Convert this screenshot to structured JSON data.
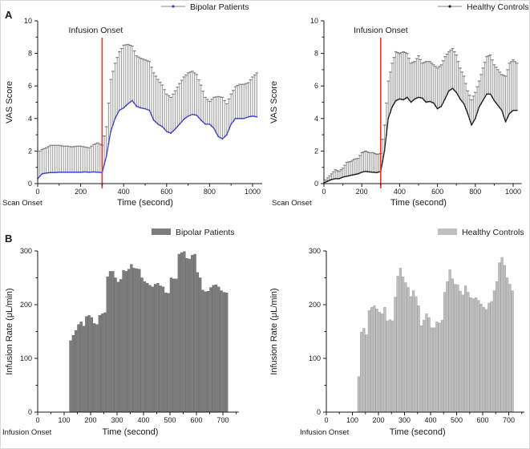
{
  "panel_labels": {
    "a": "A",
    "b": "B"
  },
  "colors": {
    "axis": "#1a1a1a",
    "error_bar": "#9e9e9e",
    "error_cap": "#818181",
    "infusion_line_red": "#e8352a",
    "bipolar_blue": "#3a41c8",
    "control_black": "#1c1c1c",
    "bipolar_bar_gray": "#7d7d7d",
    "control_bar_gray": "#bfbfbf"
  },
  "chart_data": [
    {
      "id": "vas-bipolar",
      "type": "line",
      "panel": "A",
      "legend": "Bipolar Patients",
      "xlabel": "Time (second)",
      "ylabel": "VAS Score",
      "corner_note": "Scan Onset",
      "annotation": {
        "text": "Infusion Onset",
        "x": 300,
        "color": "#e8352a"
      },
      "xlim": [
        0,
        1045
      ],
      "ylim": [
        0,
        10
      ],
      "xticks": [
        0,
        200,
        400,
        600,
        800,
        1000
      ],
      "yticks": [
        0,
        2,
        4,
        6,
        8,
        10
      ],
      "x_minor_step": 100,
      "y_minor_step": 1,
      "x_start": 0,
      "x_step": 20,
      "line_color": "#3a41c8",
      "error_color": "#9e9e9e",
      "mean": [
        0.3,
        0.6,
        0.65,
        0.68,
        0.68,
        0.7,
        0.7,
        0.7,
        0.7,
        0.7,
        0.7,
        0.72,
        0.7,
        0.72,
        0.7,
        0.68,
        1.7,
        3.2,
        4.0,
        4.5,
        4.65,
        4.9,
        5.1,
        4.75,
        4.65,
        4.6,
        4.5,
        3.9,
        3.65,
        3.5,
        3.2,
        3.1,
        3.35,
        3.65,
        3.95,
        4.15,
        4.25,
        4.2,
        3.9,
        3.65,
        3.65,
        3.4,
        2.9,
        2.75,
        3.0,
        3.65,
        4.0,
        4.0,
        4.0,
        4.1,
        4.15,
        4.1
      ],
      "upper": [
        1.9,
        2.1,
        2.2,
        2.35,
        2.35,
        2.35,
        2.3,
        2.3,
        2.25,
        2.3,
        2.3,
        2.25,
        2.2,
        2.4,
        2.5,
        2.35,
        3.5,
        6.4,
        7.4,
        8.1,
        8.5,
        8.55,
        8.45,
        7.85,
        7.7,
        7.6,
        7.5,
        6.8,
        6.4,
        6.05,
        5.5,
        5.3,
        5.7,
        6.15,
        6.55,
        6.8,
        6.9,
        6.7,
        6.05,
        5.3,
        5.05,
        5.3,
        5.35,
        5.3,
        4.9,
        5.5,
        5.95,
        6.1,
        6.1,
        6.2,
        6.55,
        6.8
      ]
    },
    {
      "id": "vas-control",
      "type": "line",
      "panel": "A",
      "legend": "Healthy Controls",
      "xlabel": "Time (second)",
      "ylabel": "VAS Score",
      "corner_note": "Scan Onset",
      "annotation": {
        "text": "Infusion Onset",
        "x": 300,
        "color": "#e8352a"
      },
      "xlim": [
        0,
        1045
      ],
      "ylim": [
        0,
        10
      ],
      "xticks": [
        0,
        200,
        400,
        600,
        800,
        1000
      ],
      "yticks": [
        0,
        2,
        4,
        6,
        8,
        10
      ],
      "x_minor_step": 100,
      "y_minor_step": 1,
      "x_start": 0,
      "x_step": 20,
      "line_color": "#1c1c1c",
      "error_color": "#9e9e9e",
      "mean": [
        0.05,
        0.15,
        0.25,
        0.3,
        0.3,
        0.4,
        0.45,
        0.5,
        0.55,
        0.6,
        0.7,
        0.75,
        0.72,
        0.7,
        0.68,
        0.75,
        2.0,
        4.0,
        4.7,
        5.1,
        5.2,
        5.15,
        5.3,
        5.0,
        5.2,
        5.3,
        5.25,
        5.0,
        5.05,
        4.95,
        4.6,
        4.75,
        5.2,
        5.7,
        5.85,
        5.6,
        5.2,
        4.9,
        4.3,
        3.6,
        4.0,
        4.7,
        5.1,
        5.5,
        5.5,
        5.1,
        4.8,
        4.5,
        3.8,
        4.3,
        4.5,
        4.5
      ],
      "upper": [
        0.1,
        0.35,
        0.6,
        0.85,
        0.75,
        0.95,
        1.3,
        1.35,
        1.5,
        1.55,
        1.9,
        2.0,
        1.9,
        1.9,
        1.8,
        1.85,
        3.6,
        6.3,
        7.4,
        8.1,
        8.0,
        8.1,
        8.0,
        7.4,
        7.5,
        7.85,
        7.4,
        7.5,
        7.5,
        7.3,
        7.1,
        7.3,
        7.8,
        8.1,
        8.3,
        7.9,
        7.1,
        6.6,
        5.7,
        5.15,
        5.6,
        6.3,
        7.1,
        7.8,
        7.9,
        7.3,
        7.0,
        6.7,
        6.6,
        7.4,
        7.6,
        7.4
      ]
    },
    {
      "id": "rate-bipolar",
      "type": "bar",
      "panel": "B",
      "legend": "Bipolar Patients",
      "xlabel": "Time (second)",
      "ylabel": "Infusion Rate  (μL/min)",
      "corner_note": "Infusion Onset",
      "xlim": [
        0,
        760
      ],
      "ylim": [
        0,
        300
      ],
      "xticks": [
        0,
        100,
        200,
        300,
        400,
        500,
        600,
        700
      ],
      "yticks": [
        0,
        100,
        200,
        300
      ],
      "x_minor_step": 50,
      "y_minor_step": 50,
      "x_start": 125,
      "x_step": 10,
      "bar_color": "#7d7d7d",
      "bar_edge": "#696969",
      "values": [
        133,
        143,
        152,
        163,
        168,
        160,
        178,
        180,
        176,
        165,
        163,
        180,
        183,
        185,
        252,
        262,
        262,
        250,
        242,
        247,
        264,
        262,
        266,
        275,
        268,
        267,
        266,
        250,
        243,
        240,
        236,
        233,
        238,
        240,
        235,
        233,
        222,
        221,
        250,
        248,
        248,
        294,
        297,
        299,
        286,
        285,
        292,
        294,
        260,
        250,
        227,
        224,
        225,
        232,
        236,
        237,
        233,
        226,
        223,
        222
      ]
    },
    {
      "id": "rate-control",
      "type": "bar",
      "panel": "B",
      "legend": "Healthy Controls",
      "xlabel": "Time (second)",
      "ylabel": "Infusion Rate (μL/min)",
      "corner_note": "Infusion Onset",
      "xlim": [
        0,
        760
      ],
      "ylim": [
        0,
        300
      ],
      "xticks": [
        0,
        100,
        200,
        300,
        400,
        500,
        600,
        700
      ],
      "yticks": [
        0,
        100,
        200,
        300
      ],
      "x_minor_step": 50,
      "y_minor_step": 50,
      "x_start": 125,
      "x_step": 10,
      "bar_color": "#bfbfbf",
      "bar_edge": "#a2a2a2",
      "values": [
        66,
        149,
        156,
        144,
        189,
        195,
        198,
        192,
        186,
        183,
        195,
        170,
        172,
        170,
        214,
        253,
        268,
        252,
        241,
        232,
        215,
        226,
        215,
        198,
        161,
        171,
        183,
        176,
        157,
        157,
        168,
        166,
        171,
        223,
        243,
        265,
        248,
        238,
        237,
        225,
        218,
        235,
        223,
        213,
        211,
        213,
        208,
        201,
        195,
        191,
        203,
        206,
        226,
        243,
        278,
        288,
        273,
        250,
        238,
        226
      ]
    }
  ]
}
